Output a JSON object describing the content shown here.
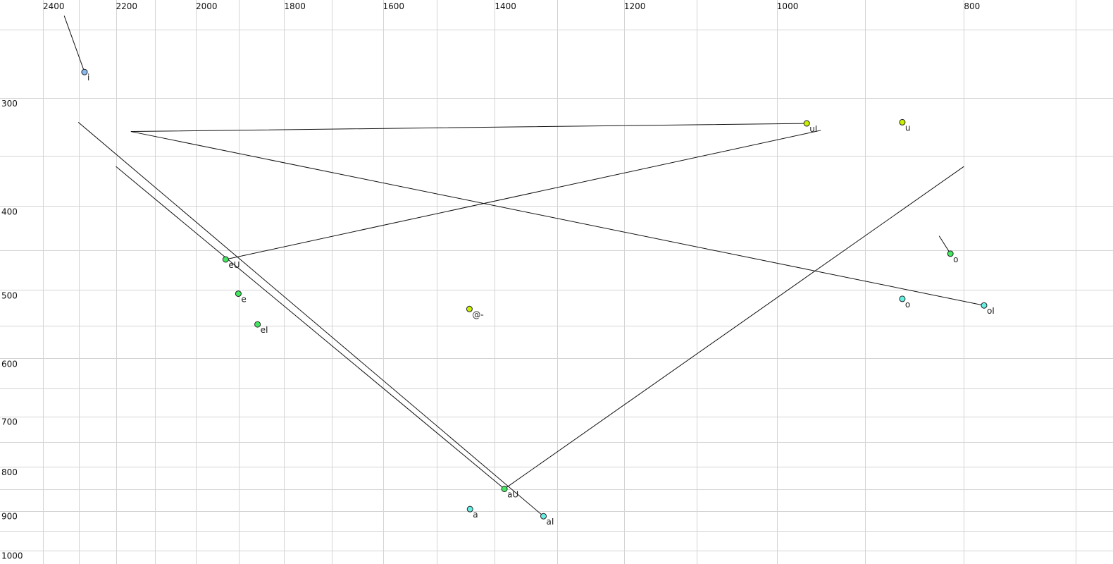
{
  "chart_data": {
    "type": "scatter",
    "title": "",
    "xlabel": "",
    "ylabel": "",
    "x_scale": "log",
    "y_scale": "log",
    "x_reversed": true,
    "y_reversed": true,
    "xlim": [
      2450,
      690
    ],
    "ylim": [
      240,
      1010
    ],
    "grid": true,
    "x_gridlines": [
      2400,
      2300,
      2200,
      2100,
      2000,
      1900,
      1800,
      1700,
      1600,
      1500,
      1400,
      1300,
      1200,
      1100,
      1000,
      900,
      800,
      700
    ],
    "y_gridlines": [
      250,
      300,
      350,
      400,
      450,
      500,
      550,
      600,
      650,
      700,
      750,
      800,
      850,
      900,
      950,
      1000
    ],
    "x_tick_labels": [
      "2400",
      "2200",
      "2000",
      "1800",
      "1600",
      "1400",
      "1200",
      "1000",
      "800"
    ],
    "y_tick_labels": [
      "300",
      "400",
      "500",
      "600",
      "700",
      "800",
      "900",
      "1000"
    ],
    "colors": {
      "blue": "#8cb8f0",
      "yellowgreen": "#c8f000",
      "green": "#44e860",
      "cyan": "#66f0e4",
      "grey_label": "#707070"
    },
    "points": [
      {
        "label": "i",
        "F2": 2284,
        "F1": 280,
        "color": "blue"
      },
      {
        "label": "uI",
        "F2": 965,
        "F1": 321,
        "color": "yellowgreen"
      },
      {
        "label": "u",
        "F2": 861,
        "F1": 320,
        "color": "yellowgreen"
      },
      {
        "label": "o",
        "F2": 813,
        "F1": 454,
        "color": "green",
        "label_color": "grey_label"
      },
      {
        "label": "o",
        "F2": 861,
        "F1": 512,
        "color": "cyan"
      },
      {
        "label": "oI",
        "F2": 781,
        "F1": 521,
        "color": "cyan"
      },
      {
        "label": "eU",
        "F2": 1930,
        "F1": 461,
        "color": "green"
      },
      {
        "label": "e",
        "F2": 1901,
        "F1": 505,
        "color": "green"
      },
      {
        "label": "eI",
        "F2": 1858,
        "F1": 548,
        "color": "green"
      },
      {
        "label": "@-",
        "F2": 1443,
        "F1": 526,
        "color": "yellowgreen"
      },
      {
        "label": "aU",
        "F2": 1384,
        "F1": 849,
        "color": "green"
      },
      {
        "label": "a",
        "F2": 1442,
        "F1": 896,
        "color": "cyan"
      },
      {
        "label": "aI",
        "F2": 1321,
        "F1": 913,
        "color": "cyan"
      }
    ],
    "trajectories": [
      {
        "points": [
          [
            2340,
            241
          ],
          [
            2284,
            280
          ]
        ],
        "color": "#111111"
      },
      {
        "points": [
          [
            2301,
            320
          ],
          [
            1321,
            913
          ]
        ],
        "color": "#111111"
      },
      {
        "points": [
          [
            2200,
            360
          ],
          [
            1384,
            849
          ],
          [
            800,
            360
          ]
        ],
        "color": "#111111"
      },
      {
        "points": [
          [
            965,
            321
          ],
          [
            2161,
            328
          ],
          [
            781,
            521
          ]
        ],
        "color": "#111111"
      },
      {
        "points": [
          [
            1930,
            461
          ],
          [
            949,
            327
          ]
        ],
        "color": "#111111"
      },
      {
        "points": [
          [
            824,
            433
          ],
          [
            813,
            454
          ]
        ],
        "color": "#777777"
      }
    ]
  }
}
